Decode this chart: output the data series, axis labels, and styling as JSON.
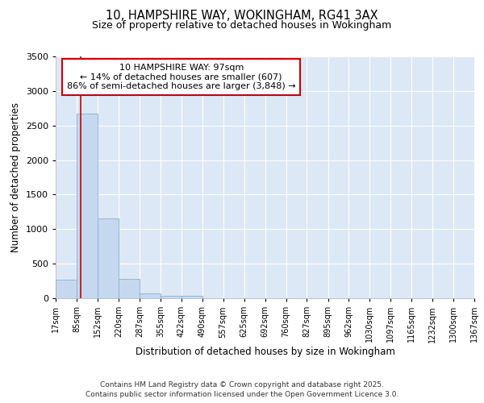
{
  "title_line1": "10, HAMPSHIRE WAY, WOKINGHAM, RG41 3AX",
  "title_line2": "Size of property relative to detached houses in Wokingham",
  "xlabel": "Distribution of detached houses by size in Wokingham",
  "ylabel": "Number of detached properties",
  "bin_edges": [
    17,
    85,
    152,
    220,
    287,
    355,
    422,
    490,
    557,
    625,
    692,
    760,
    827,
    895,
    962,
    1030,
    1097,
    1165,
    1232,
    1300,
    1367
  ],
  "bar_heights": [
    270,
    2670,
    1160,
    280,
    75,
    40,
    30,
    0,
    0,
    0,
    0,
    0,
    0,
    0,
    0,
    0,
    0,
    0,
    0,
    0
  ],
  "bar_color": "#c5d8ef",
  "bar_edgecolor": "#8ab0d4",
  "property_size": 97,
  "red_line_color": "#cc0000",
  "ylim": [
    0,
    3500
  ],
  "yticks": [
    0,
    500,
    1000,
    1500,
    2000,
    2500,
    3000,
    3500
  ],
  "annotation_title": "10 HAMPSHIRE WAY: 97sqm",
  "annotation_line1": "← 14% of detached houses are smaller (607)",
  "annotation_line2": "86% of semi-detached houses are larger (3,848) →",
  "annotation_box_color": "#ffffff",
  "annotation_edge_color": "#cc0000",
  "fig_bg_color": "#ffffff",
  "plot_bg_color": "#dce8f5",
  "grid_color": "#ffffff",
  "footer_line1": "Contains HM Land Registry data © Crown copyright and database right 2025.",
  "footer_line2": "Contains public sector information licensed under the Open Government Licence 3.0.",
  "tick_labels": [
    "17sqm",
    "85sqm",
    "152sqm",
    "220sqm",
    "287sqm",
    "355sqm",
    "422sqm",
    "490sqm",
    "557sqm",
    "625sqm",
    "692sqm",
    "760sqm",
    "827sqm",
    "895sqm",
    "962sqm",
    "1030sqm",
    "1097sqm",
    "1165sqm",
    "1232sqm",
    "1300sqm",
    "1367sqm"
  ]
}
